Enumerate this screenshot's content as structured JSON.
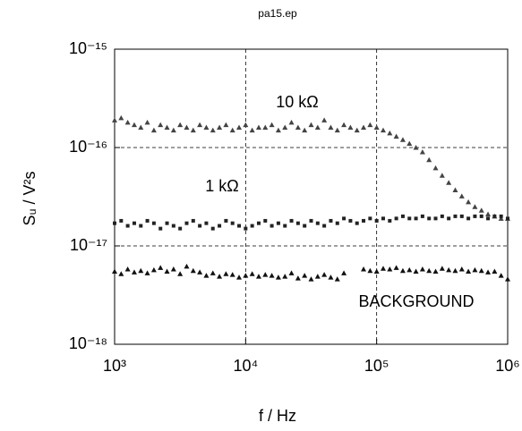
{
  "chart_data": {
    "type": "scatter",
    "title": "pa15.ep",
    "x_label": "f / Hz",
    "y_label": "Sᵤ / V²s",
    "xscale": "log",
    "yscale": "log",
    "grid": true,
    "xlim": [
      1000,
      1000000
    ],
    "ylim": [
      1e-18,
      1e-15
    ],
    "xticks": [
      {
        "value": 1000,
        "label": "10³"
      },
      {
        "value": 10000,
        "label": "10⁴"
      },
      {
        "value": 100000,
        "label": "10⁵"
      },
      {
        "value": 1000000,
        "label": "10⁶"
      }
    ],
    "yticks": [
      {
        "value": 1e-18,
        "label": "10⁻¹⁸"
      },
      {
        "value": 1e-17,
        "label": "10⁻¹⁷"
      },
      {
        "value": 1e-16,
        "label": "10⁻¹⁶"
      },
      {
        "value": 1e-15,
        "label": "10⁻¹⁵"
      }
    ],
    "x": [
      1000,
      1122,
      1259,
      1413,
      1585,
      1778,
      1995,
      2239,
      2512,
      2818,
      3162,
      3548,
      3981,
      4467,
      5012,
      5623,
      6310,
      7079,
      7943,
      8913,
      10000,
      11220,
      12589,
      14125,
      15849,
      17783,
      19953,
      22387,
      25119,
      28184,
      31623,
      35481,
      39811,
      44668,
      50119,
      56234,
      63096,
      70795,
      79433,
      89125,
      100000,
      112202,
      125893,
      141254,
      158489,
      177828,
      199526,
      223872,
      251189,
      281838,
      316228,
      354813,
      398107,
      446684,
      501187,
      562341,
      630957,
      707946,
      794328,
      891251,
      1000000
    ],
    "series": [
      {
        "name": "10 kΩ",
        "color": "#444444",
        "marker": "triangle",
        "values": [
          1.9e-16,
          2e-16,
          1.8e-16,
          1.7e-16,
          1.6e-16,
          1.8e-16,
          1.5e-16,
          1.7e-16,
          1.6e-16,
          1.5e-16,
          1.7e-16,
          1.6e-16,
          1.5e-16,
          1.7e-16,
          1.6e-16,
          1.5e-16,
          1.6e-16,
          1.7e-16,
          1.5e-16,
          1.6e-16,
          1.7e-16,
          1.5e-16,
          1.6e-16,
          1.6e-16,
          1.7e-16,
          1.5e-16,
          1.6e-16,
          1.8e-16,
          1.6e-16,
          1.5e-16,
          1.7e-16,
          1.6e-16,
          1.9e-16,
          1.6e-16,
          1.5e-16,
          1.7e-16,
          1.6e-16,
          1.5e-16,
          1.6e-16,
          1.7e-16,
          1.6e-16,
          1.5e-16,
          1.4e-16,
          1.3e-16,
          1.2e-16,
          1.1e-16,
          1e-16,
          9e-17,
          7.5e-17,
          6.2e-17,
          5.2e-17,
          4.4e-17,
          3.7e-17,
          3.2e-17,
          2.8e-17,
          2.5e-17,
          2.3e-17,
          2.1e-17,
          2e-17,
          1.9e-17,
          1.9e-17
        ]
      },
      {
        "name": "1 kΩ",
        "color": "#222222",
        "marker": "square",
        "values": [
          1.7e-17,
          1.8e-17,
          1.6e-17,
          1.7e-17,
          1.6e-17,
          1.8e-17,
          1.7e-17,
          1.5e-17,
          1.7e-17,
          1.6e-17,
          1.5e-17,
          1.7e-17,
          1.8e-17,
          1.6e-17,
          1.7e-17,
          1.5e-17,
          1.6e-17,
          1.8e-17,
          1.7e-17,
          1.6e-17,
          1.5e-17,
          1.6e-17,
          1.7e-17,
          1.8e-17,
          1.6e-17,
          1.7e-17,
          1.6e-17,
          1.8e-17,
          1.7e-17,
          1.6e-17,
          1.8e-17,
          1.7e-17,
          1.6e-17,
          1.8e-17,
          1.7e-17,
          1.9e-17,
          1.8e-17,
          1.7e-17,
          1.8e-17,
          1.9e-17,
          1.8e-17,
          1.9e-17,
          1.8e-17,
          1.9e-17,
          2e-17,
          1.9e-17,
          1.9e-17,
          2e-17,
          1.9e-17,
          1.9e-17,
          2e-17,
          1.9e-17,
          2e-17,
          2e-17,
          1.9e-17,
          2e-17,
          2e-17,
          1.9e-17,
          2e-17,
          2e-17,
          1.9e-17
        ]
      },
      {
        "name": "BACKGROUND",
        "color": "#111111",
        "marker": "triangle",
        "values": [
          5.5e-18,
          5.2e-18,
          5.8e-18,
          5.4e-18,
          5.6e-18,
          5.3e-18,
          5.7e-18,
          6e-18,
          5.5e-18,
          5.8e-18,
          5.2e-18,
          6.2e-18,
          5.6e-18,
          5.4e-18,
          5e-18,
          5.3e-18,
          4.9e-18,
          5.2e-18,
          5.1e-18,
          4.8e-18,
          5e-18,
          5.2e-18,
          4.9e-18,
          5.1e-18,
          5e-18,
          4.8e-18,
          4.9e-18,
          5.3e-18,
          4.7e-18,
          5e-18,
          4.6e-18,
          4.9e-18,
          5.1e-18,
          4.8e-18,
          4.6e-18,
          5.3e-18,
          null,
          null,
          5.8e-18,
          5.6e-18,
          5.5e-18,
          5.9e-18,
          5.8e-18,
          6e-18,
          5.6e-18,
          5.7e-18,
          5.5e-18,
          5.8e-18,
          5.6e-18,
          5.5e-18,
          5.9e-18,
          5.7e-18,
          5.6e-18,
          5.8e-18,
          5.5e-18,
          5.7e-18,
          5.6e-18,
          5.4e-18,
          5.5e-18,
          5e-18,
          4.6e-18
        ]
      }
    ]
  }
}
